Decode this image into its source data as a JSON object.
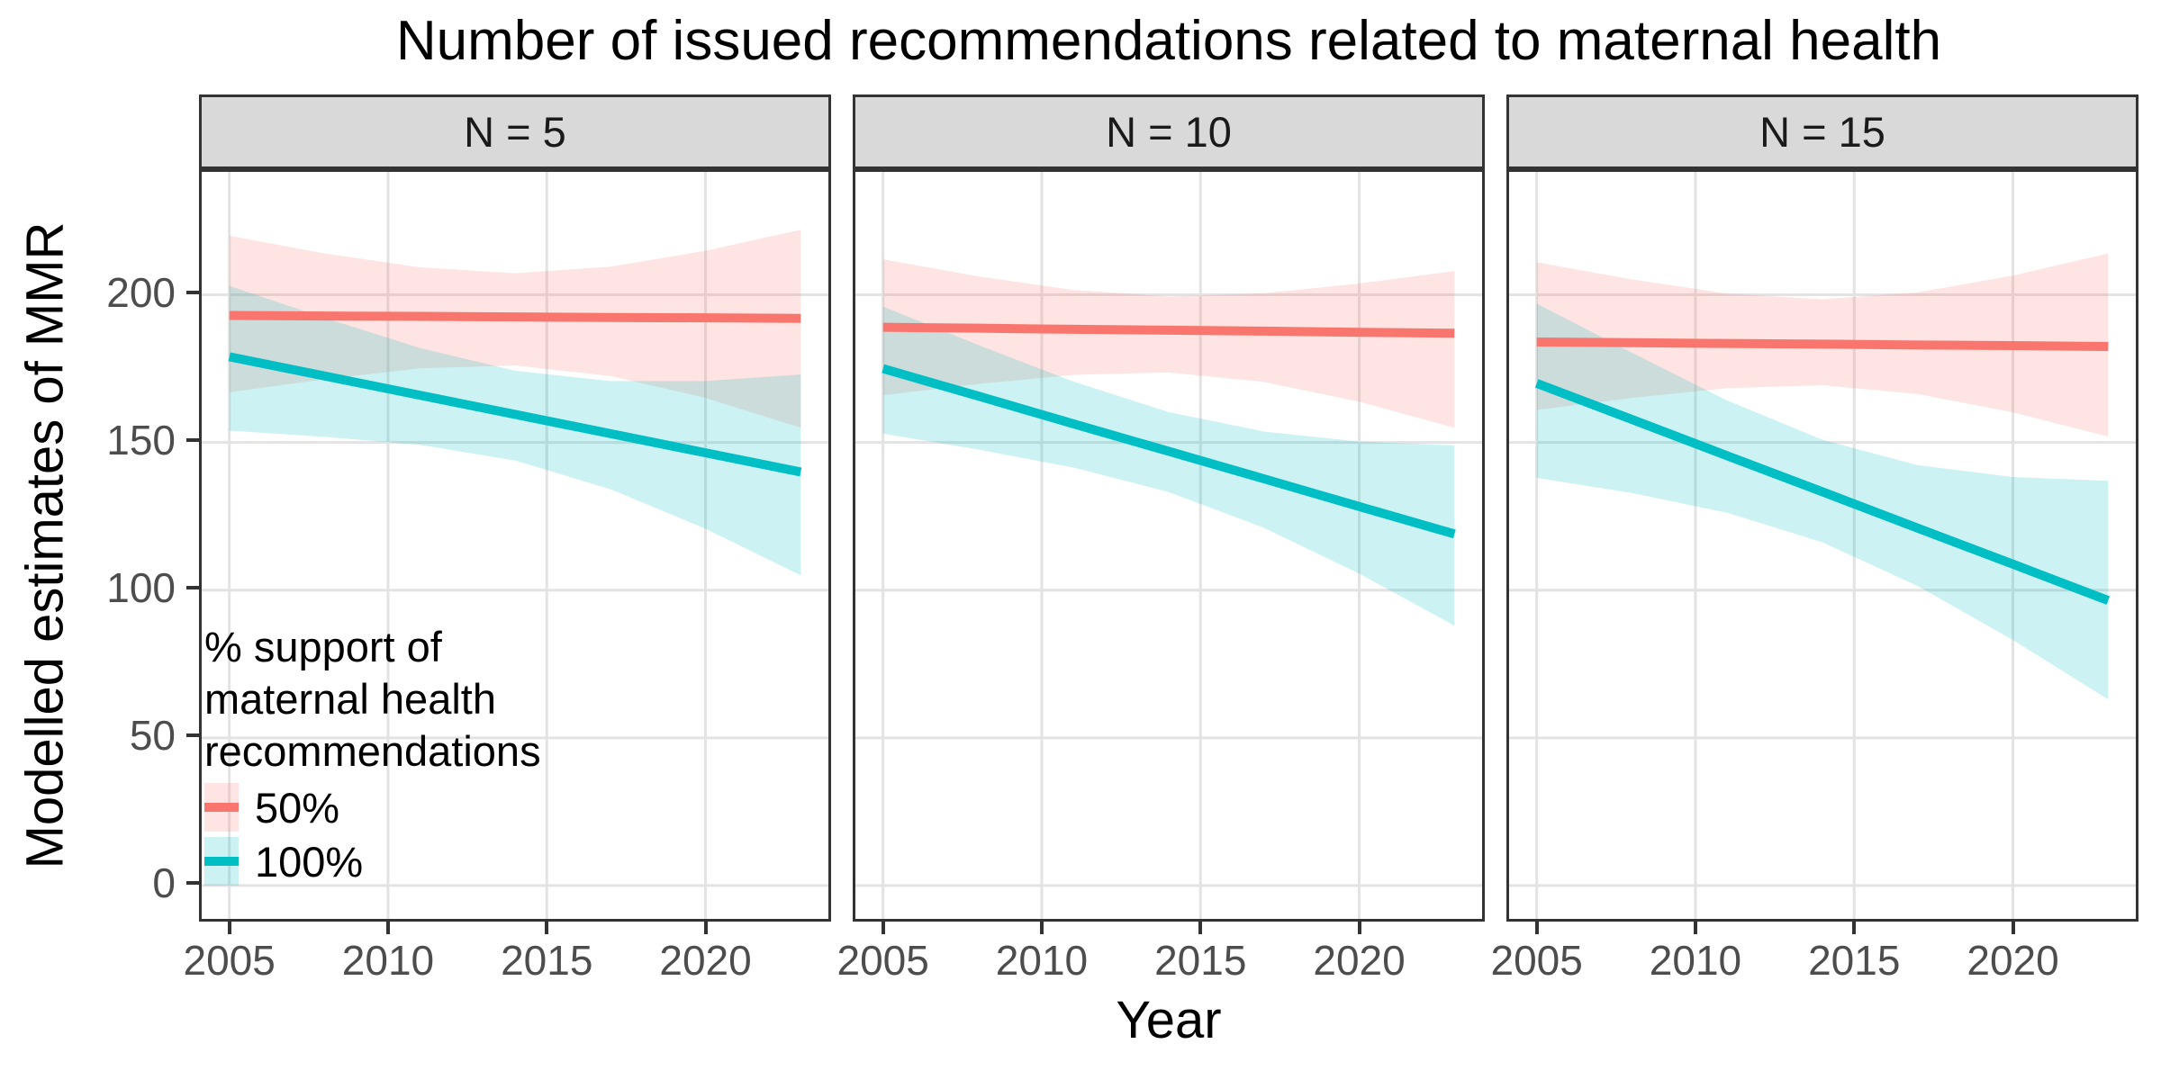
{
  "title": "Number of issued recommendations related to maternal health",
  "x_axis": {
    "title": "Year",
    "ticks": [
      2005,
      2010,
      2015,
      2020
    ]
  },
  "y_axis": {
    "title": "Modelled estimates of MMR",
    "ticks": [
      0,
      50,
      100,
      150,
      200
    ]
  },
  "legend": {
    "title_lines": [
      "% support of",
      "maternal health",
      "recommendations"
    ],
    "items": [
      {
        "label": "50%",
        "color": "#F8766D"
      },
      {
        "label": "100%",
        "color": "#00BFC4"
      }
    ]
  },
  "colors": {
    "line_50": "#F8766D",
    "line_100": "#00BFC4",
    "ribbon_alpha": 0.2,
    "strip_bg": "#D9D9D9",
    "panel_border": "#333333",
    "gridline": "#E3E3E3",
    "tick_text": "#4D4D4D"
  },
  "chart_data": {
    "type": "line",
    "x_domain": [
      2004.13,
      2023.87
    ],
    "y_domain": [
      -11.3,
      241.6
    ],
    "grid": "major-only",
    "legend_position": "inside-first-panel-bottom-left",
    "facets": [
      {
        "label": "N = 5",
        "series": [
          {
            "name": "50%",
            "color": "#F8766D",
            "x": [
              2005,
              2008,
              2011,
              2014,
              2017,
              2020,
              2023
            ],
            "y": [
              193,
              192.8,
              192.7,
              192.5,
              192.3,
              192.2,
              192
            ],
            "upper": [
              220,
              214,
              209.3,
              207.3,
              209.5,
              214.9,
              222
            ],
            "lower": [
              167,
              171.4,
              175.1,
              176.1,
              172.5,
              165.1,
              155
            ]
          },
          {
            "name": "100%",
            "color": "#00BFC4",
            "x": [
              2005,
              2008,
              2011,
              2014,
              2017,
              2020,
              2023
            ],
            "y": [
              179,
              172.5,
              166,
              159.5,
              153,
              146.5,
              140
            ],
            "upper": [
              203,
              192.2,
              182,
              174.3,
              170.8,
              170.8,
              173
            ],
            "lower": [
              154,
              151.9,
              149.2,
              143.9,
              134.2,
              120.8,
              105
            ]
          }
        ]
      },
      {
        "label": "N = 10",
        "series": [
          {
            "name": "50%",
            "color": "#F8766D",
            "x": [
              2005,
              2008,
              2011,
              2014,
              2017,
              2020,
              2023
            ],
            "y": [
              189,
              188.7,
              188.3,
              188,
              187.7,
              187.3,
              187
            ],
            "upper": [
              212,
              206.2,
              201.6,
              199.4,
              200.5,
              203.8,
              208
            ],
            "lower": [
              166,
              169.8,
              172.9,
              173.7,
              170.5,
              163.8,
              155
            ]
          },
          {
            "name": "100%",
            "color": "#00BFC4",
            "x": [
              2005,
              2008,
              2011,
              2014,
              2017,
              2020,
              2023
            ],
            "y": [
              175,
              165.7,
              156.3,
              147,
              137.7,
              128.3,
              119
            ],
            "upper": [
              196,
              183,
              170.6,
              160.3,
              153.7,
              150.3,
              149
            ],
            "lower": [
              153,
              147.6,
              141.5,
              133.2,
              121.1,
              105.6,
              88
            ]
          }
        ]
      },
      {
        "label": "N = 15",
        "series": [
          {
            "name": "50%",
            "color": "#F8766D",
            "x": [
              2005,
              2008,
              2011,
              2014,
              2017,
              2020,
              2023
            ],
            "y": [
              184,
              183.8,
              183.5,
              183.3,
              183,
              182.8,
              182.5
            ],
            "upper": [
              211,
              205.2,
              200.4,
              198.5,
              200.8,
              206.5,
              214
            ],
            "lower": [
              161,
              165.1,
              168.4,
              169.4,
              166.4,
              160.2,
              152
            ]
          },
          {
            "name": "100%",
            "color": "#00BFC4",
            "x": [
              2005,
              2008,
              2011,
              2014,
              2017,
              2020,
              2023
            ],
            "y": [
              170,
              157.8,
              145.5,
              133.3,
              121,
              108.8,
              96.5
            ],
            "upper": [
              197,
              180.4,
              164.2,
              150.9,
              142.3,
              138.3,
              137
            ],
            "lower": [
              138,
              132.9,
              126.2,
              116.2,
              101.4,
              83.1,
              63
            ]
          }
        ]
      }
    ]
  }
}
